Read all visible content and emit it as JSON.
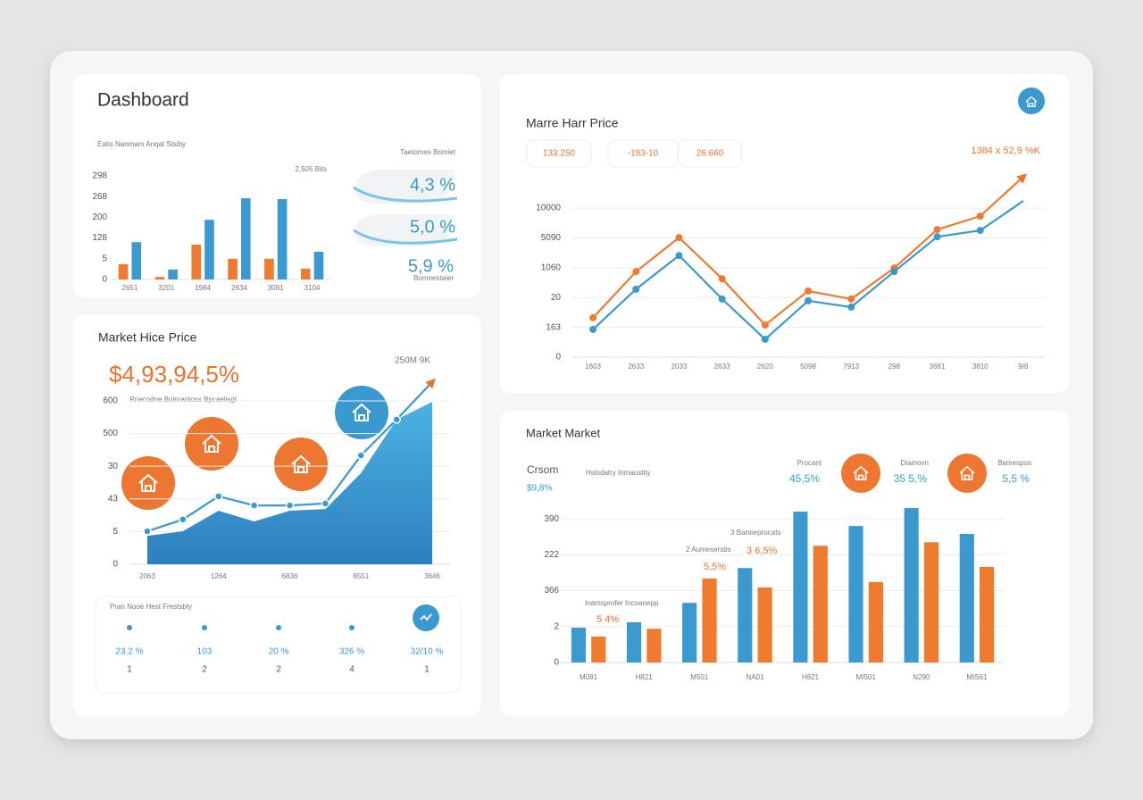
{
  "header": {
    "title": "Dashboard"
  },
  "side_kpis": {
    "title": "Taetomes Brimiet",
    "values": [
      "4,3 %",
      "5,0 %",
      "5,9 %"
    ],
    "caption": "Bomnestaier"
  },
  "stats": {
    "title": "Pran Nooe Hest Frestsbty",
    "items": [
      {
        "value": "23.2 %",
        "rank": "1"
      },
      {
        "value": "103",
        "rank": "2"
      },
      {
        "value": "20 %",
        "rank": "2"
      },
      {
        "value": "326 %",
        "rank": "4"
      },
      {
        "value": "32/10 %",
        "rank": "1"
      }
    ]
  },
  "pills": [
    "133.250",
    "-193-10",
    "26.660"
  ],
  "kpis": [
    {
      "label": "Procant",
      "value": "45,5%"
    },
    {
      "label": "Diamovn",
      "value": "35 5,%"
    },
    {
      "label": "Bamespos",
      "value": "5,5 %"
    }
  ],
  "chart_data": [
    {
      "type": "bar",
      "subtitle": "Eatis Nanmam Anqat Stsiby",
      "annotation": "2,505 Bits",
      "categories": [
        "2651",
        "3201",
        "1984",
        "2634",
        "3081",
        "3104"
      ],
      "series": [
        {
          "color": "#f07a2e",
          "values": [
            37,
            6,
            84,
            50,
            50,
            26
          ]
        },
        {
          "color": "#3a9ad0",
          "values": [
            90,
            24,
            144,
            196,
            194,
            67
          ]
        }
      ],
      "ylim": [
        0,
        250
      ],
      "yticks": [
        0,
        {
          "value": 50,
          "label": "5"
        },
        {
          "value": 100,
          "label": "128"
        },
        {
          "value": 150,
          "label": "200"
        },
        {
          "value": 200,
          "label": "268"
        },
        {
          "value": 250,
          "label": "298"
        }
      ]
    },
    {
      "type": "area",
      "title": "Market Hice Price",
      "headline": "$4,93,94,5%",
      "subtitle": "Rnecodne Bolnrantoss Bpcaelisgt",
      "annotation": "250M 9K",
      "categories": [
        "2063",
        null,
        "1264",
        null,
        "6836",
        null,
        "8551",
        null,
        "3646"
      ],
      "series": [
        {
          "kind": "area",
          "color": "#3a9ad0",
          "values": [
            87,
            101,
            164,
            131,
            164,
            169,
            279,
            443,
            497
          ]
        },
        {
          "kind": "line",
          "color": "#3a9ad0",
          "values": [
            101,
            137,
            208,
            180,
            180,
            186,
            333,
            443,
            558
          ]
        }
      ],
      "ylim": [
        0,
        560
      ],
      "grid": true,
      "yticks": [
        0,
        {
          "value": 100,
          "label": "5"
        },
        {
          "value": 200,
          "label": "43"
        },
        {
          "value": 300,
          "label": "30"
        },
        {
          "value": 400,
          "label": "500"
        },
        {
          "value": 500,
          "label": "600"
        }
      ]
    },
    {
      "type": "line",
      "title": "Marre Harr Price",
      "annotation": "1384 x 52,9 %K",
      "categories": [
        "1603",
        "2633",
        "2033",
        "2633",
        "2620",
        "5098",
        "7913",
        "298",
        "3681",
        "3810",
        "9/8"
      ],
      "series": [
        {
          "color": "#f07a2e",
          "values": [
            132,
            287,
            401,
            263,
            108,
            222,
            195,
            299,
            428,
            473,
            605
          ]
        },
        {
          "color": "#3a9ad0",
          "values": [
            93,
            228,
            341,
            195,
            60,
            189,
            168,
            287,
            404,
            425,
            524
          ]
        }
      ],
      "ylim": [
        0,
        620
      ],
      "grid": true,
      "yticks": [
        0,
        {
          "value": 100,
          "label": "163"
        },
        {
          "value": 200,
          "label": "20"
        },
        {
          "value": 300,
          "label": "1060"
        },
        {
          "value": 400,
          "label": "5090"
        },
        {
          "value": 500,
          "label": "10000"
        }
      ]
    },
    {
      "type": "bar",
      "title": "Market Market",
      "subtitle": "Hslodatry Inmaustity",
      "side_label": "Crsom",
      "side_value": "$9,8%",
      "annotations": [
        "3 Barmeprocats",
        "2 Aumesersbs",
        "3 6,5%",
        "5,5%",
        "Inamsprofer Incoanepp",
        "5 4%"
      ],
      "categories": [
        "M081",
        "H821",
        "M501",
        "NA01",
        "H821",
        "MI501",
        "N290",
        "MIS61"
      ],
      "series": [
        {
          "color": "#3a9ad0",
          "values": [
            97,
            112,
            166,
            263,
            420,
            380,
            430,
            358
          ]
        },
        {
          "color": "#f07a2e",
          "values": [
            72,
            94,
            234,
            209,
            325,
            224,
            335,
            266
          ]
        }
      ],
      "ylim": [
        0,
        450
      ],
      "grid": true,
      "yticks": [
        0,
        {
          "value": 100,
          "label": "2"
        },
        {
          "value": 200,
          "label": "366"
        },
        {
          "value": 300,
          "label": "222"
        },
        {
          "value": 400,
          "label": "390"
        }
      ]
    }
  ]
}
